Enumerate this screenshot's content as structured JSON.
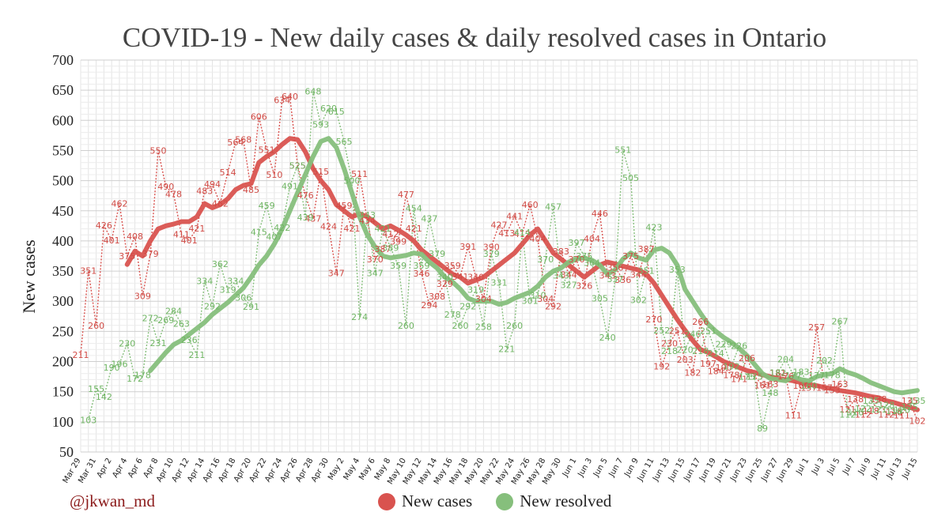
{
  "chart_data": {
    "type": "line",
    "title": "COVID-19 - New daily cases & daily resolved cases in Ontario",
    "ylabel": "New cases",
    "xlabel": "",
    "ylim": [
      50,
      700
    ],
    "yticks": [
      50,
      100,
      150,
      200,
      250,
      300,
      350,
      400,
      450,
      500,
      550,
      600,
      650,
      700
    ],
    "start_date": "Mar 29",
    "xtick_labels": [
      "Mar 29",
      "Mar 31",
      "Apr 2",
      "Apr 4",
      "Apr 6",
      "Apr 8",
      "Apr 10",
      "Apr 12",
      "Apr 14",
      "Apr 16",
      "Apr 18",
      "Apr 20",
      "Apr 22",
      "Apr 24",
      "Apr 26",
      "Apr 28",
      "Apr 30",
      "May 2",
      "May 4",
      "May 6",
      "May 8",
      "May 10",
      "May 12",
      "May 14",
      "May 16",
      "May 18",
      "May 20",
      "May 22",
      "May 24",
      "May 26",
      "May 28",
      "May 30",
      "Jun 1",
      "Jun 3",
      "Jun 5",
      "Jun 7",
      "Jun 9",
      "Jun 11",
      "Jun 13",
      "Jun 15",
      "Jun 17",
      "Jun 19",
      "Jun 21",
      "Jun 23",
      "Jun 25",
      "Jun 27",
      "Jun 29",
      "Jul 1",
      "Jul 3",
      "Jul 5",
      "Jul 7",
      "Jul 9",
      "Jul 11",
      "Jul 13",
      "Jul 15"
    ],
    "series": [
      {
        "name": "New cases",
        "color": "#d9534f",
        "daily": [
          211,
          351,
          260,
          426,
          401,
          462,
          375,
          408,
          309,
          379,
          550,
          490,
          478,
          411,
          401,
          421,
          483,
          494,
          462,
          514,
          564,
          568,
          485,
          606,
          551,
          510,
          634,
          640,
          525,
          476,
          437,
          515,
          424,
          347,
          459,
          421,
          511,
          434,
          370,
          387,
          412,
          399,
          477,
          421,
          346,
          294,
          308,
          329,
          359,
          341,
          391,
          340,
          304,
          390,
          427,
          413,
          441,
          412,
          460,
          404,
          304,
          292,
          383,
          344,
          370,
          326,
          404,
          446,
          343,
          356,
          336,
          375,
          344,
          387,
          270,
          192,
          230,
          251,
          203,
          182,
          266,
          197,
          184,
          190,
          178,
          171,
          206,
          175,
          161,
          163,
          181,
          176,
          111,
          160,
          157,
          257,
          157,
          153,
          163,
          121,
          138,
          112,
          118,
          138,
          112,
          116,
          111,
          135,
          102
        ],
        "rolling_avg": [
          null,
          null,
          null,
          null,
          null,
          null,
          361,
          383,
          375,
          400,
          420,
          425,
          428,
          432,
          432,
          440,
          462,
          455,
          460,
          470,
          485,
          492,
          495,
          530,
          540,
          548,
          560,
          570,
          568,
          548,
          520,
          500,
          485,
          460,
          450,
          440,
          445,
          440,
          430,
          420,
          425,
          418,
          410,
          400,
          385,
          375,
          365,
          355,
          345,
          340,
          330,
          335,
          340,
          350,
          360,
          370,
          380,
          395,
          410,
          420,
          400,
          380,
          370,
          360,
          350,
          340,
          350,
          360,
          365,
          362,
          358,
          355,
          352,
          345,
          330,
          310,
          290,
          270,
          252,
          235,
          220,
          215,
          208,
          200,
          195,
          190,
          185,
          182,
          178,
          175,
          172,
          170,
          168,
          165,
          162,
          160,
          157,
          155,
          152,
          150,
          148,
          145,
          142,
          140,
          135,
          132,
          128,
          124,
          120
        ]
      },
      {
        "name": "New resolved",
        "color": "#86bf7c",
        "daily": [
          null,
          103,
          155,
          142,
          190,
          196,
          230,
          172,
          178,
          272,
          231,
          269,
          284,
          263,
          236,
          211,
          334,
          292,
          362,
          319,
          334,
          306,
          291,
          415,
          459,
          407,
          422,
          491,
          525,
          439,
          648,
          593,
          620,
          615,
          565,
          500,
          274,
          443,
          347,
          421,
          389,
          359,
          260,
          454,
          359,
          437,
          379,
          340,
          278,
          260,
          292,
          319,
          258,
          379,
          331,
          221,
          260,
          414,
          301,
          310,
          370,
          457,
          343,
          327,
          397,
          375,
          364,
          305,
          240,
          337,
          551,
          505,
          302,
          351,
          423,
          252,
          218,
          353,
          220,
          246,
          218,
          251,
          214,
          229,
          192,
          226,
          175,
          175,
          89,
          148,
          182,
          204,
          177,
          183,
          160,
          177,
          202,
          178,
          267,
          112,
          116,
          122,
          135,
          121,
          128,
          118,
          120,
          125,
          135
        ],
        "rolling_avg": [
          null,
          null,
          null,
          null,
          null,
          null,
          null,
          null,
          null,
          185,
          200,
          215,
          228,
          235,
          245,
          255,
          265,
          278,
          288,
          298,
          310,
          322,
          340,
          360,
          375,
          395,
          420,
          450,
          480,
          510,
          540,
          565,
          570,
          555,
          520,
          480,
          440,
          410,
          390,
          375,
          372,
          374,
          376,
          380,
          378,
          365,
          355,
          340,
          332,
          320,
          305,
          300,
          300,
          300,
          295,
          298,
          305,
          310,
          315,
          325,
          340,
          350,
          355,
          365,
          370,
          372,
          368,
          360,
          345,
          352,
          370,
          380,
          372,
          368,
          385,
          388,
          380,
          360,
          320,
          300,
          280,
          262,
          250,
          240,
          232,
          222,
          210,
          195,
          180,
          172,
          170,
          168,
          175,
          170,
          168,
          175,
          178,
          180,
          188,
          182,
          178,
          172,
          165,
          160,
          155,
          150,
          148,
          150,
          152
        ]
      }
    ],
    "legend": [
      "New cases",
      "New resolved"
    ]
  },
  "credit": "@jkwan_md"
}
